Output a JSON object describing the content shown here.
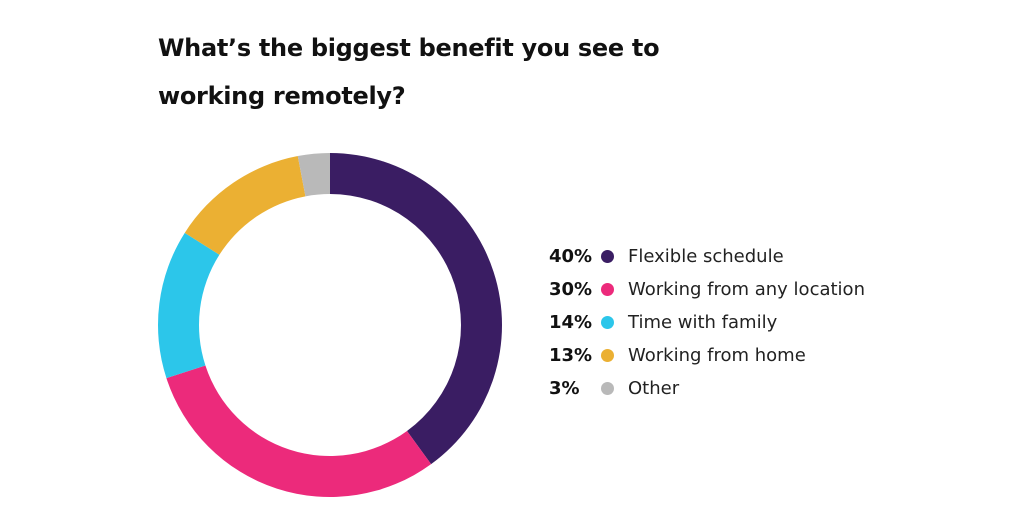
{
  "title": "What’s the biggest benefit you see to working remotely?",
  "chart_data": {
    "type": "pie",
    "title": "What’s the biggest benefit you see to working remotely?",
    "subtype": "donut",
    "legend_position": "right",
    "slices": [
      {
        "label": "Flexible schedule",
        "pct_label": "40%",
        "value": 40,
        "color": "#3a1d63"
      },
      {
        "label": "Working from any location",
        "pct_label": "30%",
        "value": 30,
        "color": "#ec2a7b"
      },
      {
        "label": "Time with family",
        "pct_label": "14%",
        "value": 14,
        "color": "#2cc6ea"
      },
      {
        "label": "Working from home",
        "pct_label": "13%",
        "value": 13,
        "color": "#ebb033"
      },
      {
        "label": "Other",
        "pct_label": "3%",
        "value": 3,
        "color": "#b9b9b9"
      }
    ]
  }
}
